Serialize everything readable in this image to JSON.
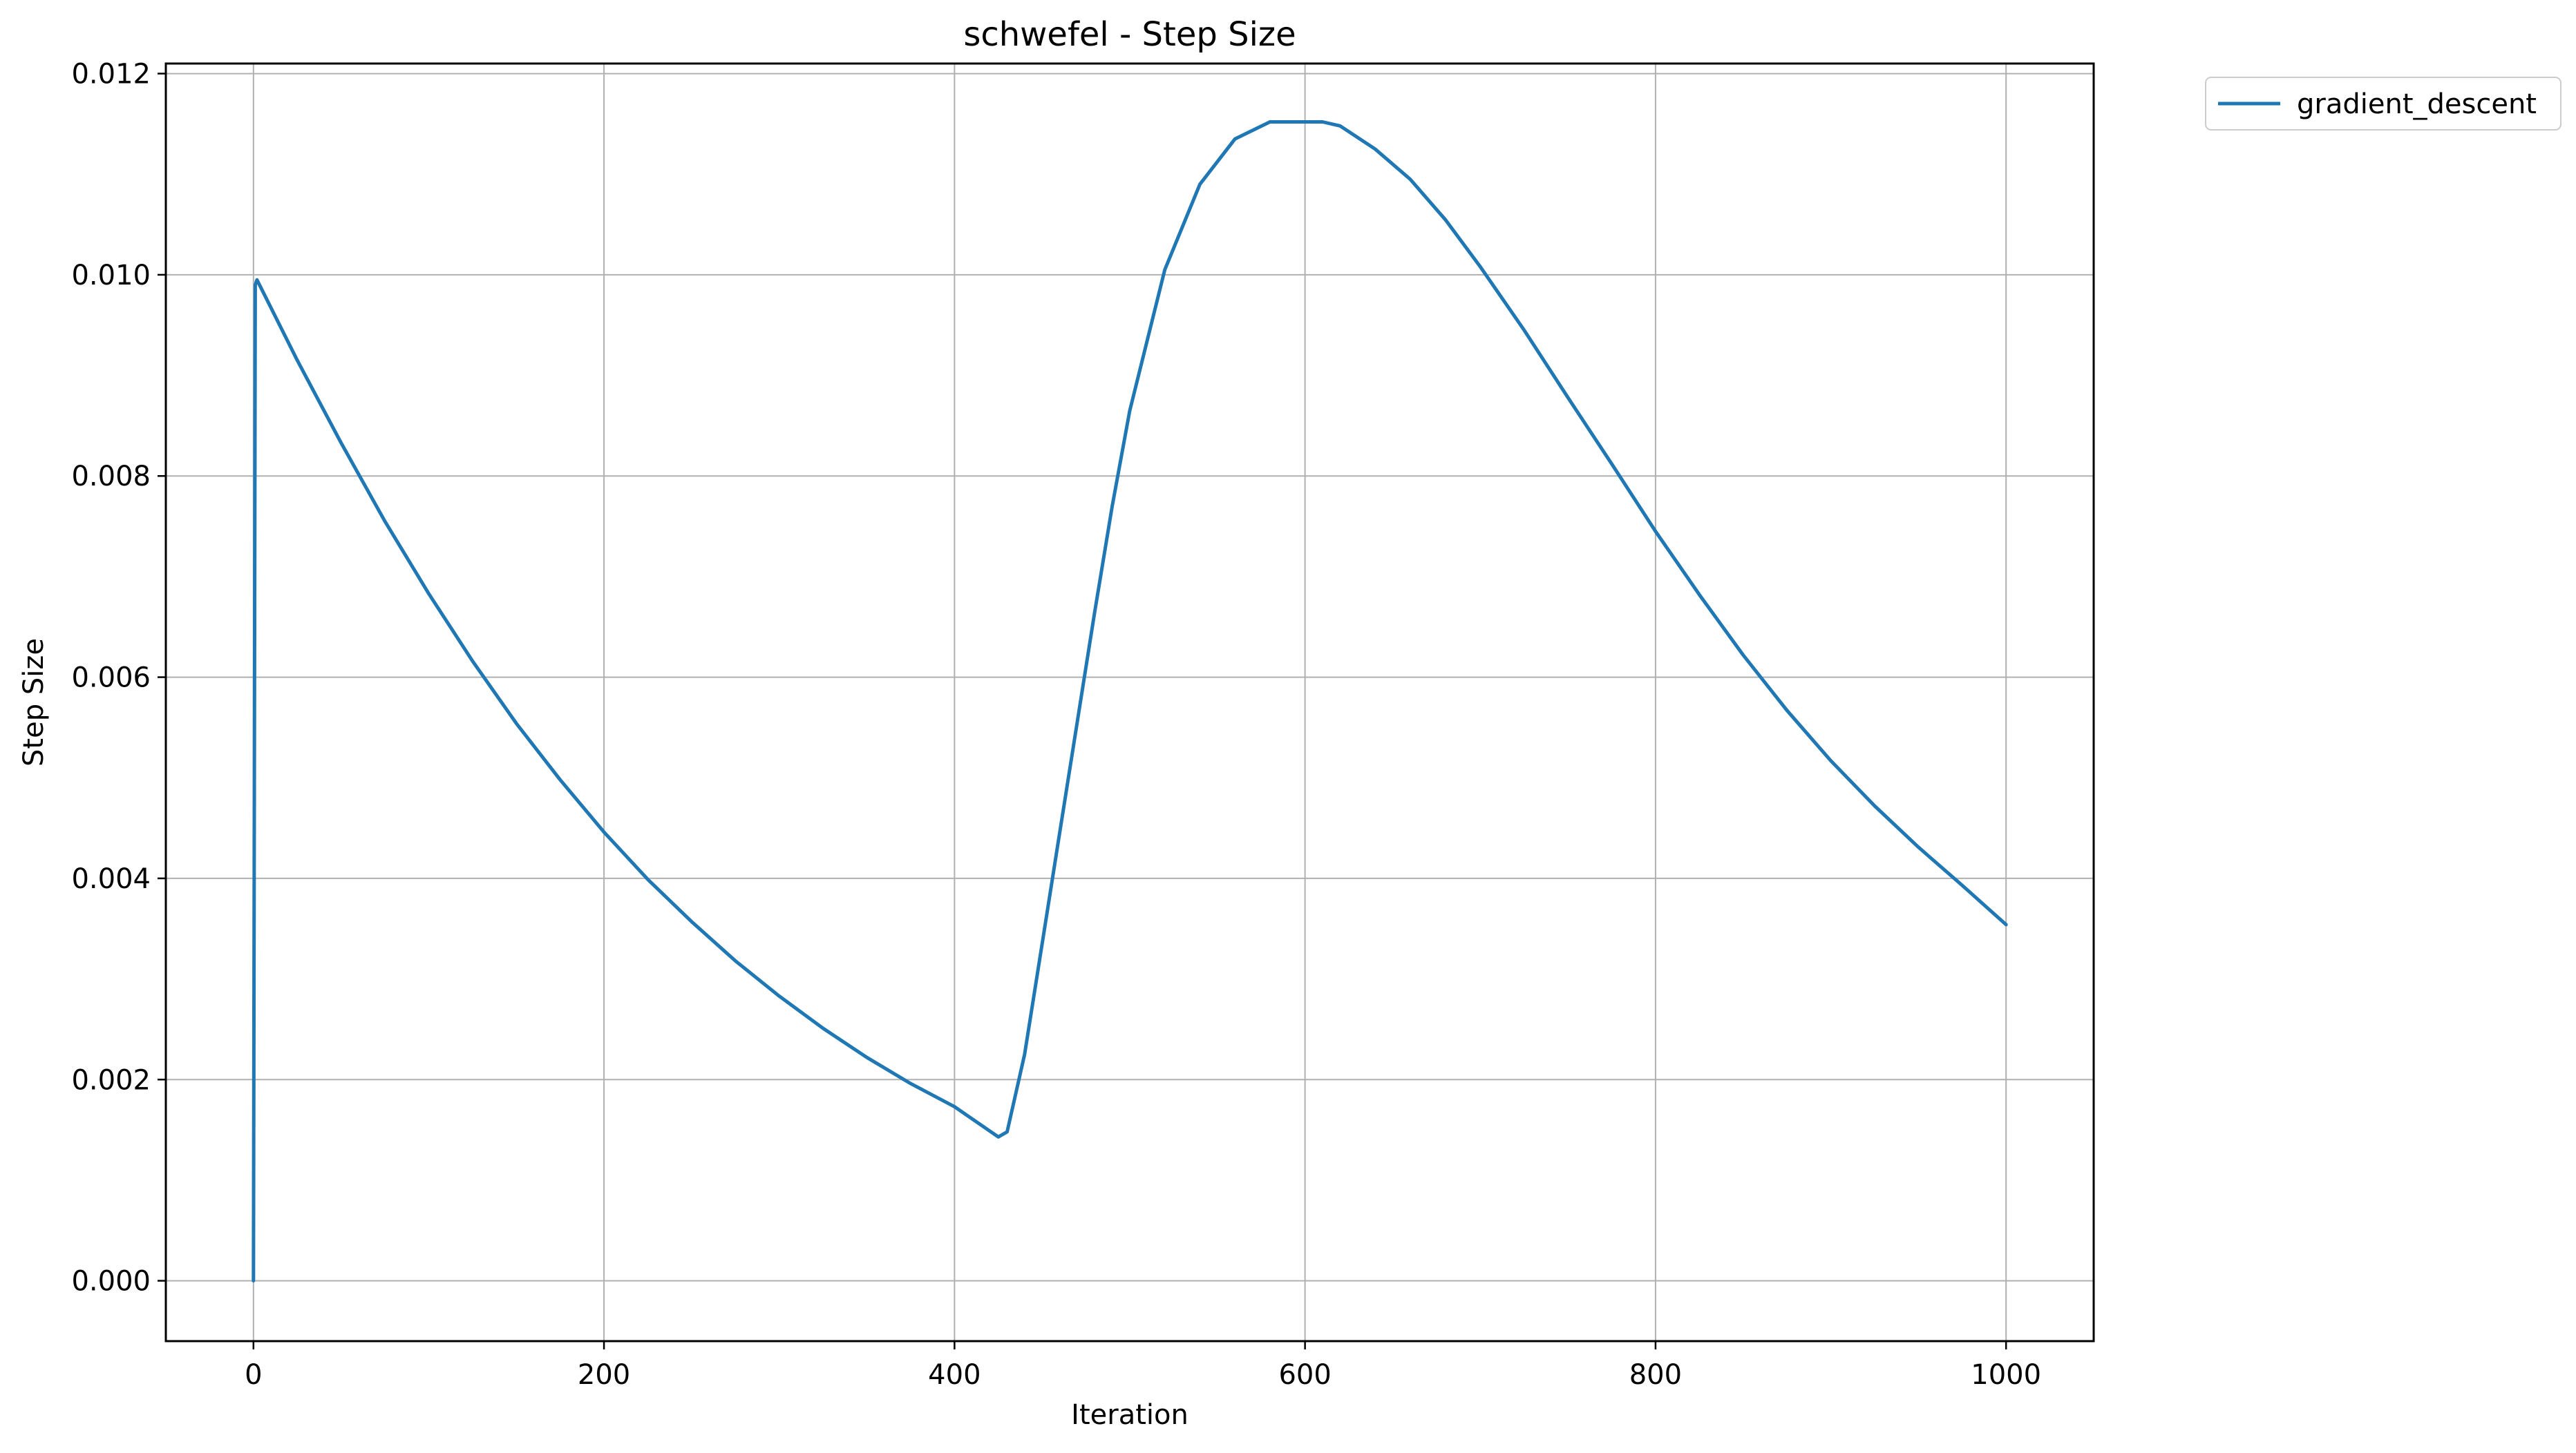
{
  "chart_data": {
    "type": "line",
    "title": "schwefel - Step Size",
    "xlabel": "Iteration",
    "ylabel": "Step Size",
    "xlim": [
      -50,
      1050
    ],
    "ylim": [
      -0.0006,
      0.0121
    ],
    "x_ticks": [
      0,
      200,
      400,
      600,
      800,
      1000
    ],
    "x_tick_labels": [
      "0",
      "200",
      "400",
      "600",
      "800",
      "1000"
    ],
    "y_ticks": [
      0.0,
      0.002,
      0.004,
      0.006,
      0.008,
      0.01,
      0.012
    ],
    "y_tick_labels": [
      "0.000",
      "0.002",
      "0.004",
      "0.006",
      "0.008",
      "0.010",
      "0.012"
    ],
    "grid": true,
    "legend_position": "outside top-right",
    "series": [
      {
        "name": "gradient_descent",
        "color": "#1f77b4",
        "x": [
          0,
          1,
          2,
          25,
          50,
          75,
          100,
          125,
          150,
          175,
          200,
          225,
          250,
          275,
          300,
          325,
          350,
          375,
          400,
          415,
          425,
          430,
          440,
          450,
          460,
          470,
          480,
          490,
          500,
          520,
          540,
          560,
          580,
          600,
          610,
          620,
          640,
          660,
          680,
          700,
          725,
          750,
          775,
          800,
          825,
          850,
          875,
          900,
          925,
          950,
          975,
          1000
        ],
        "y": [
          0.0,
          0.0099,
          0.00995,
          0.00915,
          0.00833,
          0.00755,
          0.00683,
          0.00616,
          0.00554,
          0.00498,
          0.00446,
          0.00399,
          0.00357,
          0.00318,
          0.00283,
          0.00251,
          0.00222,
          0.00196,
          0.00173,
          0.00155,
          0.00143,
          0.00148,
          0.00225,
          0.00335,
          0.00445,
          0.00555,
          0.00665,
          0.0077,
          0.00865,
          0.01005,
          0.0109,
          0.01135,
          0.01152,
          0.01152,
          0.01152,
          0.01148,
          0.01125,
          0.01095,
          0.01055,
          0.01008,
          0.00945,
          0.00878,
          0.00812,
          0.00745,
          0.00682,
          0.00622,
          0.00567,
          0.00517,
          0.00472,
          0.00431,
          0.00393,
          0.00354
        ]
      }
    ]
  }
}
